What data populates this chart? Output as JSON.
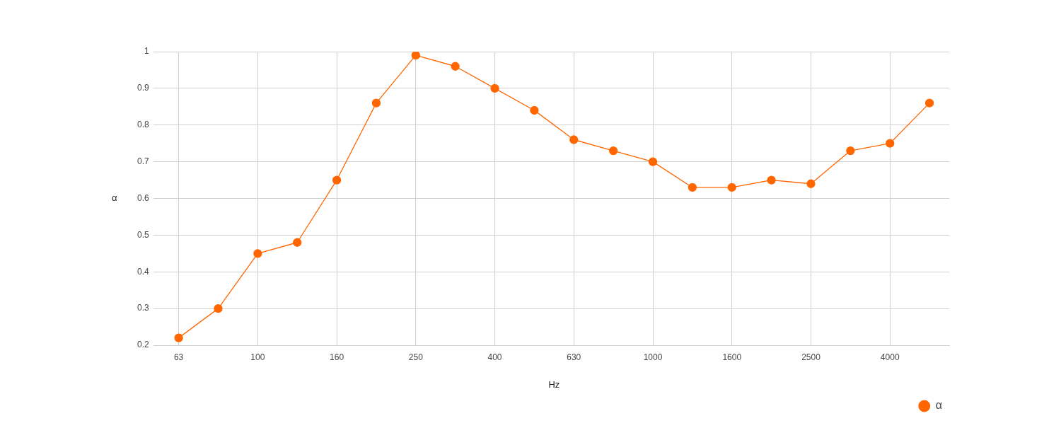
{
  "chart_data": {
    "type": "line",
    "xlabel": "Hz",
    "ylabel": "α",
    "categories": [
      "63",
      null,
      "100",
      null,
      "160",
      null,
      "250",
      null,
      "400",
      null,
      "630",
      null,
      "1000",
      null,
      "1600",
      null,
      "2500",
      null,
      "4000",
      null
    ],
    "series": [
      {
        "name": "α",
        "color": "#ff6600",
        "values": [
          0.22,
          0.3,
          0.45,
          0.48,
          0.65,
          0.86,
          0.99,
          0.96,
          0.9,
          0.84,
          0.76,
          0.73,
          0.7,
          0.63,
          0.63,
          0.65,
          0.64,
          0.73,
          0.75,
          0.86
        ]
      }
    ],
    "ylim": [
      0.2,
      1
    ],
    "yticks": [
      0.2,
      0.3,
      0.4,
      0.5,
      0.6,
      0.7,
      0.8,
      0.9,
      1
    ],
    "grid": true,
    "legend": "bottom right",
    "marker": "circle",
    "line_style": "solid"
  }
}
